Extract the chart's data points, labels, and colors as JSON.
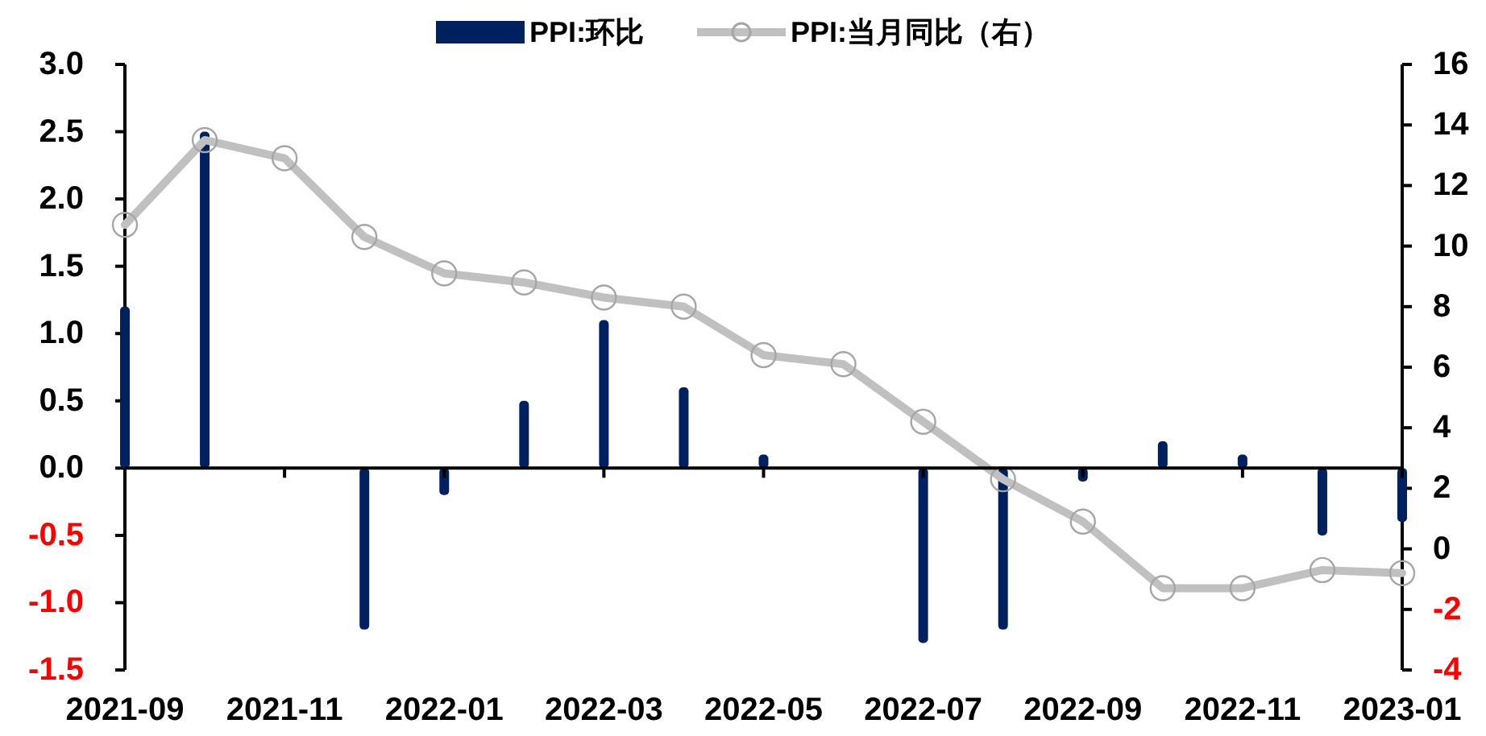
{
  "chart_data": {
    "type": "bar",
    "categories": [
      "2021-09",
      null,
      "2021-11",
      null,
      "2022-01",
      null,
      "2022-03",
      null,
      "2022-05",
      null,
      "2022-07",
      null,
      "2022-09",
      null,
      "2022-11",
      null,
      "2023-01"
    ],
    "series": [
      {
        "name": "PPI:环比",
        "color": "#002060",
        "values": [
          1.2,
          2.5,
          0,
          -1.2,
          -0.2,
          0.5,
          1.1,
          0.6,
          0.1,
          0,
          -1.3,
          -1.2,
          -0.1,
          0.2,
          0.1,
          -0.5,
          -0.4
        ]
      },
      {
        "name": "PPI:当月同比（右）",
        "type": "line",
        "axis": "y2",
        "color": "#c0c0c0",
        "marker": "circle",
        "line_style": "solid",
        "values": [
          10.7,
          13.5,
          12.9,
          10.3,
          9.1,
          8.8,
          8.3,
          8.0,
          6.4,
          6.1,
          4.2,
          2.3,
          0.9,
          -1.3,
          -1.3,
          -0.7,
          -0.8
        ]
      }
    ],
    "ylim": [
      -1.5,
      3.0
    ],
    "yticks": [
      {
        "value": -1.5,
        "label": "-1.5"
      },
      {
        "value": -1.0,
        "label": "-1.0"
      },
      {
        "value": -0.5,
        "label": "-0.5"
      },
      {
        "value": 0,
        "label": "0.0"
      },
      {
        "value": 0.5,
        "label": "0.5"
      },
      {
        "value": 1.0,
        "label": "1.0"
      },
      {
        "value": 1.5,
        "label": "1.5"
      },
      {
        "value": 2.0,
        "label": "2.0"
      },
      {
        "value": 2.5,
        "label": "2.5"
      },
      {
        "value": 3.0,
        "label": "3.0"
      }
    ],
    "y2lim": [
      -4,
      16
    ],
    "y2ticks": [
      -4,
      -2,
      0,
      2,
      4,
      6,
      8,
      10,
      12,
      14,
      16
    ],
    "legend": "top"
  }
}
